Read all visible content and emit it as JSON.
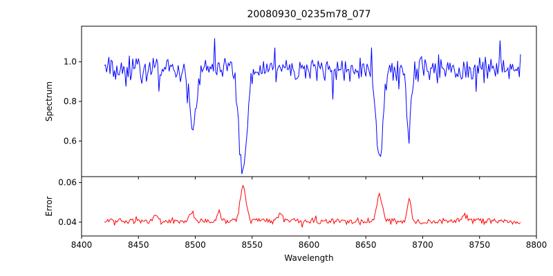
{
  "chart_data": {
    "type": "line",
    "title": "20080930_0235m78_077",
    "xlabel": "Wavelength",
    "xlim": [
      8400,
      8800
    ],
    "x_ticks": [
      {
        "value": 8400,
        "label": "8400"
      },
      {
        "value": 8450,
        "label": "8450"
      },
      {
        "value": 8500,
        "label": "8500"
      },
      {
        "value": 8550,
        "label": "8550"
      },
      {
        "value": 8600,
        "label": "8600"
      },
      {
        "value": 8650,
        "label": "8650"
      },
      {
        "value": 8700,
        "label": "8700"
      },
      {
        "value": 8750,
        "label": "8750"
      },
      {
        "value": 8800,
        "label": "8800"
      }
    ],
    "panels": [
      {
        "name": "spectrum",
        "ylabel": "Spectrum",
        "ylim": [
          0.42,
          1.18
        ],
        "y_ticks": [
          {
            "value": 0.6,
            "label": "0.6"
          },
          {
            "value": 0.8,
            "label": "0.8"
          },
          {
            "value": 1.0,
            "label": "1.0"
          }
        ],
        "color": "#0000ff",
        "series": {
          "x_start": 8420,
          "x_end": 8786,
          "step": 1,
          "baseline": 0.96,
          "noise_amplitude": 0.075,
          "spike_probability": 0.06,
          "spike_amplitude": 0.14,
          "seed": 12345,
          "features": [
            {
              "center": 8498,
              "amplitude": -0.32,
              "sigma": 2.5
            },
            {
              "center": 8542,
              "amplitude": -0.5,
              "sigma": 3.5
            },
            {
              "center": 8662,
              "amplitude": -0.47,
              "sigma": 3.0
            },
            {
              "center": 8688,
              "amplitude": -0.33,
              "sigma": 2.0
            }
          ]
        }
      },
      {
        "name": "error",
        "ylabel": "Error",
        "ylim": [
          0.033,
          0.063
        ],
        "y_ticks": [
          {
            "value": 0.04,
            "label": "0.04"
          },
          {
            "value": 0.06,
            "label": "0.06"
          }
        ],
        "color": "#ff0000",
        "series": {
          "x_start": 8420,
          "x_end": 8786,
          "step": 1,
          "baseline": 0.0405,
          "noise_amplitude": 0.0018,
          "spike_probability": 0.05,
          "spike_amplitude": 0.003,
          "seed": 777,
          "features": [
            {
              "center": 8542,
              "amplitude": 0.018,
              "sigma": 2.5
            },
            {
              "center": 8662,
              "amplitude": 0.013,
              "sigma": 2.5
            },
            {
              "center": 8688,
              "amplitude": 0.012,
              "sigma": 1.5
            },
            {
              "center": 8497,
              "amplitude": 0.005,
              "sigma": 2.0
            },
            {
              "center": 8465,
              "amplitude": 0.004,
              "sigma": 2.0
            },
            {
              "center": 8521,
              "amplitude": 0.005,
              "sigma": 1.5
            },
            {
              "center": 8575,
              "amplitude": 0.004,
              "sigma": 1.5
            },
            {
              "center": 8736,
              "amplitude": 0.004,
              "sigma": 1.5
            }
          ]
        }
      }
    ]
  }
}
